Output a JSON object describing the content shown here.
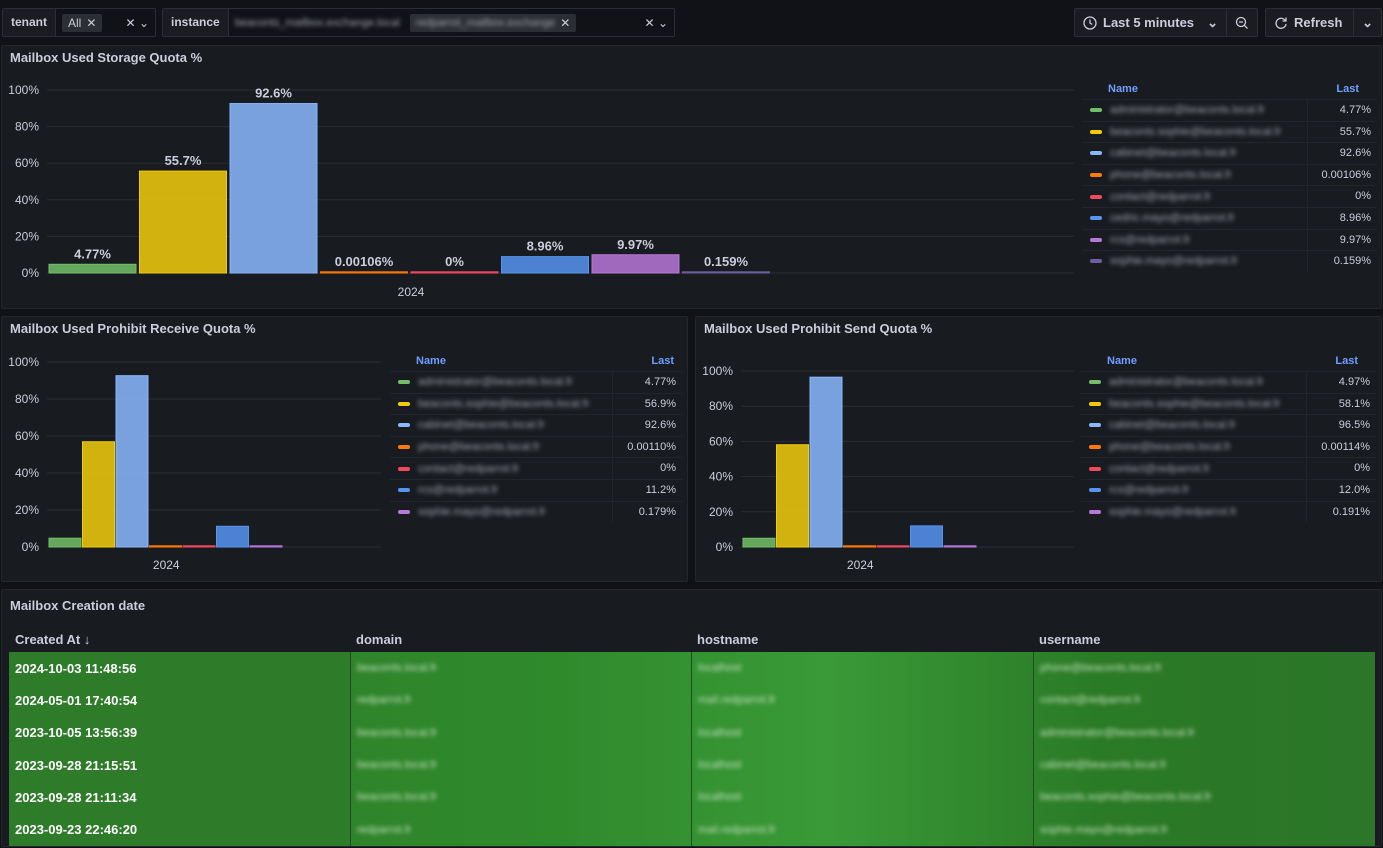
{
  "variables": {
    "tenant": {
      "label": "tenant",
      "value": "All"
    },
    "instance": {
      "label": "instance",
      "values": [
        "beaconts_mailbox.exchange.local",
        "redparrot_mailbox.exchange"
      ]
    }
  },
  "time_picker": {
    "label": "Last 5 minutes"
  },
  "refresh": {
    "label": "Refresh"
  },
  "colors": [
    "#73bf69",
    "#f2cc0c",
    "#8ab8ff",
    "#ff780a",
    "#f2495c",
    "#5794f2",
    "#b877d9",
    "#705da0"
  ],
  "panel_storage": {
    "title": "Mailbox Used Storage Quota %",
    "legend_name": "Name",
    "legend_last": "Last",
    "names": [
      "administrator@beaconts.local.fr",
      "beaconts.sophie@beaconts.local.fr",
      "cabinet@beaconts.local.fr",
      "phone@beaconts.local.fr",
      "contact@redparrot.fr",
      "cedric.mayo@redparrot.fr",
      "rcs@redparrot.fr",
      "sophie.mayo@redparrot.fr"
    ],
    "lasts": [
      "4.77%",
      "55.7%",
      "92.6%",
      "0.00106%",
      "0%",
      "8.96%",
      "9.97%",
      "0.159%"
    ]
  },
  "panel_receive": {
    "title": "Mailbox Used Prohibit Receive Quota %",
    "legend_name": "Name",
    "legend_last": "Last",
    "names": [
      "administrator@beaconts.local.fr",
      "beaconts.sophie@beaconts.local.fr",
      "cabinet@beaconts.local.fr",
      "phone@beaconts.local.fr",
      "contact@redparrot.fr",
      "rcs@redparrot.fr",
      "sophie.mayo@redparrot.fr"
    ],
    "lasts": [
      "4.77%",
      "56.9%",
      "92.6%",
      "0.00110%",
      "0%",
      "11.2%",
      "0.179%"
    ]
  },
  "panel_send": {
    "title": "Mailbox Used Prohibit Send Quota %",
    "legend_name": "Name",
    "legend_last": "Last",
    "names": [
      "administrator@beaconts.local.fr",
      "beaconts.sophie@beaconts.local.fr",
      "cabinet@beaconts.local.fr",
      "phone@beaconts.local.fr",
      "contact@redparrot.fr",
      "rcs@redparrot.fr",
      "sophie.mayo@redparrot.fr"
    ],
    "lasts": [
      "4.97%",
      "58.1%",
      "96.5%",
      "0.00114%",
      "0%",
      "12.0%",
      "0.191%"
    ]
  },
  "chart_data": [
    {
      "type": "bar",
      "title": "Mailbox Used Storage Quota %",
      "categories": [
        "2024"
      ],
      "series_values": [
        4.77,
        55.7,
        92.6,
        0.00106,
        0,
        8.96,
        9.97,
        0.159
      ],
      "value_labels": [
        "4.77%",
        "55.7%",
        "92.6%",
        "0.00106%",
        "0%",
        "8.96%",
        "9.97%",
        "0.159%"
      ],
      "y_ticks": [
        "0%",
        "20%",
        "40%",
        "60%",
        "80%",
        "100%"
      ],
      "ylim": [
        0,
        100
      ],
      "x_label": "2024"
    },
    {
      "type": "bar",
      "title": "Mailbox Used Prohibit Receive Quota %",
      "categories": [
        "2024"
      ],
      "series_values": [
        4.77,
        56.9,
        92.6,
        0.0011,
        0,
        11.2,
        0.179
      ],
      "y_ticks": [
        "0%",
        "20%",
        "40%",
        "60%",
        "80%",
        "100%"
      ],
      "ylim": [
        0,
        100
      ],
      "x_label": "2024"
    },
    {
      "type": "bar",
      "title": "Mailbox Used Prohibit Send Quota %",
      "categories": [
        "2024"
      ],
      "series_values": [
        4.97,
        58.1,
        96.5,
        0.00114,
        0,
        12.0,
        0.191
      ],
      "y_ticks": [
        "0%",
        "20%",
        "40%",
        "60%",
        "80%",
        "100%"
      ],
      "ylim": [
        0,
        100
      ],
      "x_label": "2024"
    }
  ],
  "creation_table": {
    "title": "Mailbox Creation date",
    "columns": [
      "Created At",
      "domain",
      "hostname",
      "username"
    ],
    "rows": [
      [
        "2024-10-03 11:48:56",
        "beaconts.local.fr",
        "localhost",
        "phone@beaconts.local.fr"
      ],
      [
        "2024-05-01 17:40:54",
        "redparrot.fr",
        "mail.redparrot.fr",
        "contact@redparrot.fr"
      ],
      [
        "2023-10-05 13:56:39",
        "beaconts.local.fr",
        "localhost",
        "administrator@beaconts.local.fr"
      ],
      [
        "2023-09-28 21:15:51",
        "beaconts.local.fr",
        "localhost",
        "cabinet@beaconts.local.fr"
      ],
      [
        "2023-09-28 21:11:34",
        "beaconts.local.fr",
        "localhost",
        "beaconts.sophie@beaconts.local.fr"
      ],
      [
        "2023-09-23 22:46:20",
        "redparrot.fr",
        "mail.redparrot.fr",
        "sophie.mayo@redparrot.fr"
      ]
    ]
  }
}
